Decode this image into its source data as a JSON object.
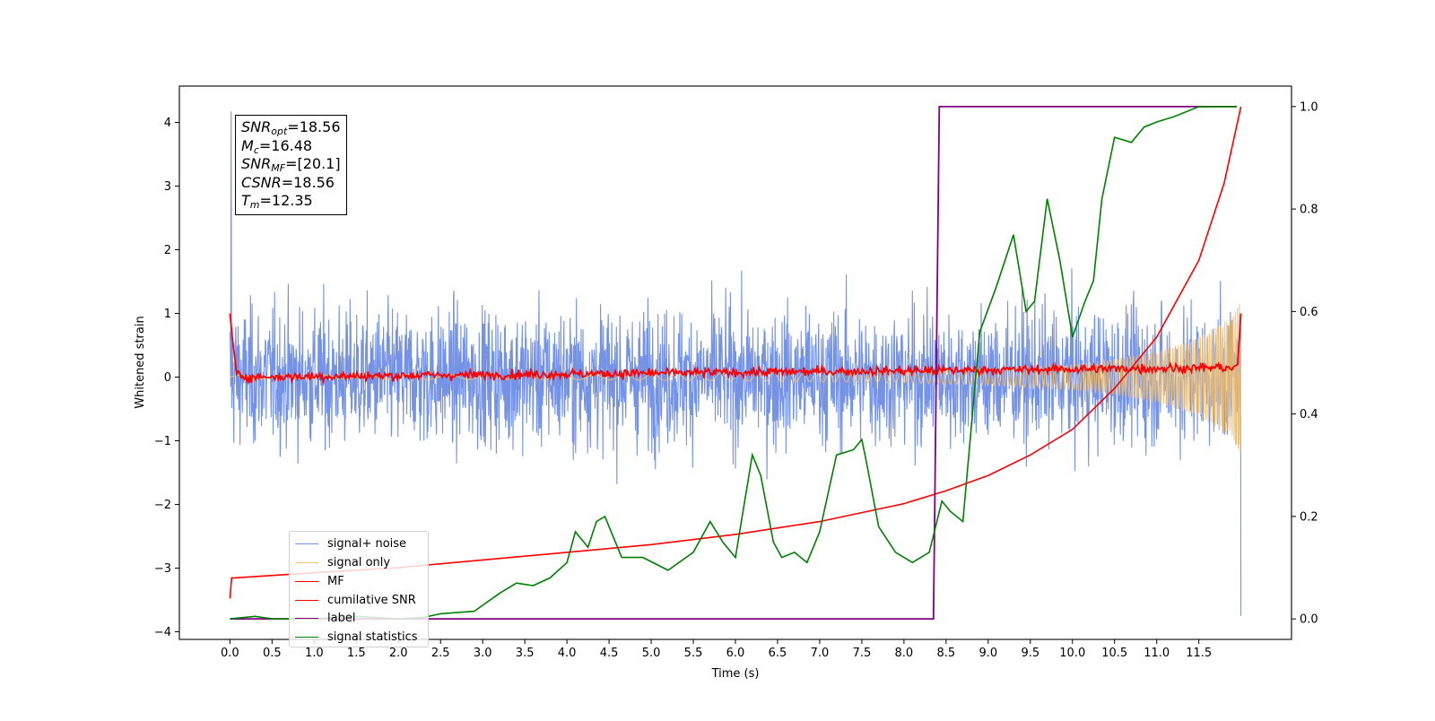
{
  "chart_data": {
    "type": "line",
    "xlabel": "Time (s)",
    "ylabel": "Whitened strain",
    "xlim": [
      -0.6,
      12.6
    ],
    "ylim": [
      -4.12,
      4.57
    ],
    "ylim_right": [
      -0.04,
      1.04
    ],
    "x_ticks": [
      "0.0",
      "0.5",
      "1.0",
      "1.5",
      "2.0",
      "2.5",
      "3.0",
      "3.5",
      "4.0",
      "4.5",
      "5.0",
      "5.5",
      "6.0",
      "6.5",
      "7.0",
      "7.5",
      "8.0",
      "8.5",
      "9.0",
      "9.5",
      "10.0",
      "10.5",
      "11.0",
      "11.5"
    ],
    "y_ticks": [
      "−4",
      "−3",
      "−2",
      "−1",
      "0",
      "1",
      "2",
      "3",
      "4"
    ],
    "y_ticks_right": [
      "0.0",
      "0.2",
      "0.4",
      "0.6",
      "0.8",
      "1.0"
    ],
    "grid": false,
    "legend_placement": "lower-left",
    "annotation": {
      "snr_opt": {
        "sym": "SNR",
        "sub": "opt",
        "value": "=18.56"
      },
      "mc": {
        "sym": "M",
        "sub": "c",
        "value": "=16.48"
      },
      "snr_mf": {
        "sym": "SNR",
        "sub": "MF",
        "value": "=[20.1]"
      },
      "csnr": {
        "sym": "CSNR",
        "value": "=18.56"
      },
      "tm": {
        "sym": "T",
        "sub": "m",
        "value": "=12.35"
      }
    },
    "series": [
      {
        "name": "signal+ noise",
        "color": "#7492e6",
        "axis": "left",
        "description_values": {
          "x_start": 0.0,
          "x_end": 12.0,
          "envelope_low": -2.0,
          "envelope_high": 2.0,
          "peak_max": 4.17,
          "peak_min": -3.75
        }
      },
      {
        "name": "signal only",
        "color": "#f5c06a",
        "axis": "left",
        "chirp_amplitude_points": {
          "x": [
            0,
            4,
            6,
            8,
            9,
            10,
            10.5,
            11,
            11.5,
            11.9,
            12.0
          ],
          "amp": [
            0.03,
            0.04,
            0.06,
            0.09,
            0.13,
            0.2,
            0.28,
            0.4,
            0.62,
            0.95,
            1.2
          ]
        }
      },
      {
        "name": "MF",
        "color": "#ff0000",
        "axis": "left",
        "x": [
          0.0,
          0.03,
          0.08,
          0.2,
          11.9,
          11.96,
          12.0
        ],
        "y": [
          1.0,
          0.6,
          0.05,
          0.0,
          0.15,
          0.2,
          1.0
        ],
        "noise_amplitude": 0.05
      },
      {
        "name": "cumilative SNR",
        "color": "#ff0000",
        "axis": "right",
        "x": [
          0.0,
          0.02,
          0.05,
          1.0,
          2.0,
          3.0,
          4.0,
          5.0,
          6.0,
          7.0,
          8.0,
          8.5,
          9.0,
          9.5,
          10.0,
          10.5,
          11.0,
          11.5,
          11.8,
          12.0
        ],
        "y": [
          0.04,
          0.08,
          0.08,
          0.09,
          0.1,
          0.115,
          0.13,
          0.145,
          0.165,
          0.19,
          0.225,
          0.25,
          0.28,
          0.32,
          0.37,
          0.45,
          0.55,
          0.7,
          0.85,
          1.0
        ]
      },
      {
        "name": "label",
        "color": "#800080",
        "axis": "right",
        "x": [
          0.0,
          8.35,
          8.42,
          11.95
        ],
        "y": [
          0.0,
          0.0,
          1.0,
          1.0
        ]
      },
      {
        "name": "signal statistics",
        "color": "#008000",
        "axis": "right",
        "x": [
          0.0,
          0.3,
          0.5,
          1.0,
          1.5,
          2.0,
          2.3,
          2.5,
          2.9,
          3.2,
          3.4,
          3.6,
          3.8,
          4.0,
          4.1,
          4.25,
          4.35,
          4.45,
          4.65,
          4.9,
          5.2,
          5.5,
          5.7,
          5.85,
          6.0,
          6.2,
          6.3,
          6.45,
          6.55,
          6.7,
          6.85,
          7.0,
          7.2,
          7.4,
          7.5,
          7.55,
          7.7,
          7.9,
          8.1,
          8.2,
          8.3,
          8.45,
          8.55,
          8.7,
          8.9,
          9.1,
          9.3,
          9.45,
          9.55,
          9.7,
          9.85,
          10.0,
          10.15,
          10.25,
          10.35,
          10.5,
          10.7,
          10.85,
          11.0,
          11.2,
          11.5,
          11.95
        ],
        "y": [
          0.0,
          0.005,
          0.0,
          0.0,
          0.005,
          0.0,
          0.003,
          0.01,
          0.015,
          0.05,
          0.07,
          0.065,
          0.08,
          0.11,
          0.17,
          0.14,
          0.19,
          0.2,
          0.12,
          0.12,
          0.095,
          0.13,
          0.19,
          0.15,
          0.12,
          0.32,
          0.28,
          0.15,
          0.12,
          0.13,
          0.11,
          0.17,
          0.32,
          0.33,
          0.35,
          0.31,
          0.18,
          0.13,
          0.11,
          0.12,
          0.13,
          0.23,
          0.21,
          0.19,
          0.56,
          0.65,
          0.75,
          0.6,
          0.62,
          0.82,
          0.7,
          0.55,
          0.62,
          0.66,
          0.82,
          0.94,
          0.93,
          0.96,
          0.97,
          0.98,
          1.0,
          1.0
        ]
      }
    ]
  }
}
